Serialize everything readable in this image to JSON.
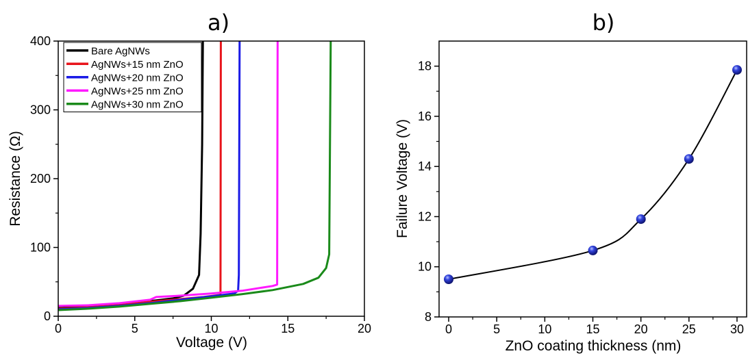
{
  "chart_data": [
    {
      "panel_label": "a)",
      "type": "line",
      "xlabel": "Voltage (V)",
      "ylabel": "Resistance (Ω)",
      "xlim": [
        0,
        20
      ],
      "ylim": [
        0,
        400
      ],
      "x_ticks": [
        "0",
        "5",
        "10",
        "15",
        "20"
      ],
      "y_ticks": [
        "0",
        "100",
        "200",
        "300",
        "400"
      ],
      "grid": false,
      "legend_position": "top-left",
      "series": [
        {
          "name": "Bare AgNWs",
          "color": "#000000",
          "points": [
            [
              0,
              12
            ],
            [
              2,
              14
            ],
            [
              4,
              17
            ],
            [
              6,
              22
            ],
            [
              7.5,
              26
            ],
            [
              8.2,
              30
            ],
            [
              8.8,
              40
            ],
            [
              9.2,
              60
            ],
            [
              9.3,
              120
            ],
            [
              9.4,
              250
            ],
            [
              9.45,
              400
            ]
          ]
        },
        {
          "name": "AgNWs+15 nm ZnO",
          "color": "#e8141b",
          "points": [
            [
              0,
              11
            ],
            [
              2,
              13
            ],
            [
              4,
              16
            ],
            [
              6,
              21
            ],
            [
              8,
              25
            ],
            [
              9.5,
              28
            ],
            [
              10.6,
              31
            ],
            [
              10.62,
              400
            ]
          ]
        },
        {
          "name": "AgNWs+20 nm ZnO",
          "color": "#1a1ae6",
          "points": [
            [
              0,
              10
            ],
            [
              2,
              12
            ],
            [
              4,
              15
            ],
            [
              6,
              19
            ],
            [
              8,
              24
            ],
            [
              10,
              29
            ],
            [
              11.5,
              33
            ],
            [
              11.75,
              37
            ],
            [
              11.8,
              60
            ],
            [
              11.85,
              400
            ]
          ]
        },
        {
          "name": "AgNWs+25 nm ZnO",
          "color": "#ff1aff",
          "points": [
            [
              0,
              15
            ],
            [
              2,
              16
            ],
            [
              4,
              19
            ],
            [
              6,
              24
            ],
            [
              6.4,
              28
            ],
            [
              8,
              30
            ],
            [
              10,
              33
            ],
            [
              12,
              37
            ],
            [
              14,
              44
            ],
            [
              14.3,
              46
            ],
            [
              14.33,
              400
            ]
          ]
        },
        {
          "name": "AgNWs+30 nm ZnO",
          "color": "#1a8a1a",
          "points": [
            [
              0,
              9
            ],
            [
              2,
              11
            ],
            [
              4,
              14
            ],
            [
              6,
              18
            ],
            [
              8,
              22
            ],
            [
              10,
              27
            ],
            [
              12,
              32
            ],
            [
              14,
              38
            ],
            [
              16,
              47
            ],
            [
              17,
              56
            ],
            [
              17.5,
              70
            ],
            [
              17.7,
              90
            ],
            [
              17.8,
              400
            ]
          ]
        }
      ]
    },
    {
      "panel_label": "b)",
      "type": "scatter",
      "xlabel": "ZnO coating thickness (nm)",
      "ylabel": "Failure Voltage (V)",
      "xlim": [
        -1,
        31
      ],
      "ylim": [
        8,
        19
      ],
      "x_ticks": [
        "0",
        "5",
        "10",
        "15",
        "20",
        "25",
        "30"
      ],
      "y_ticks": [
        "8",
        "10",
        "12",
        "14",
        "16",
        "18"
      ],
      "grid": false,
      "marker_color": "#2233cc",
      "line_color": "#000000",
      "series": [
        {
          "x": [
            0,
            15,
            20,
            25,
            30
          ],
          "y": [
            9.5,
            10.65,
            11.9,
            14.3,
            17.85
          ]
        }
      ]
    }
  ]
}
